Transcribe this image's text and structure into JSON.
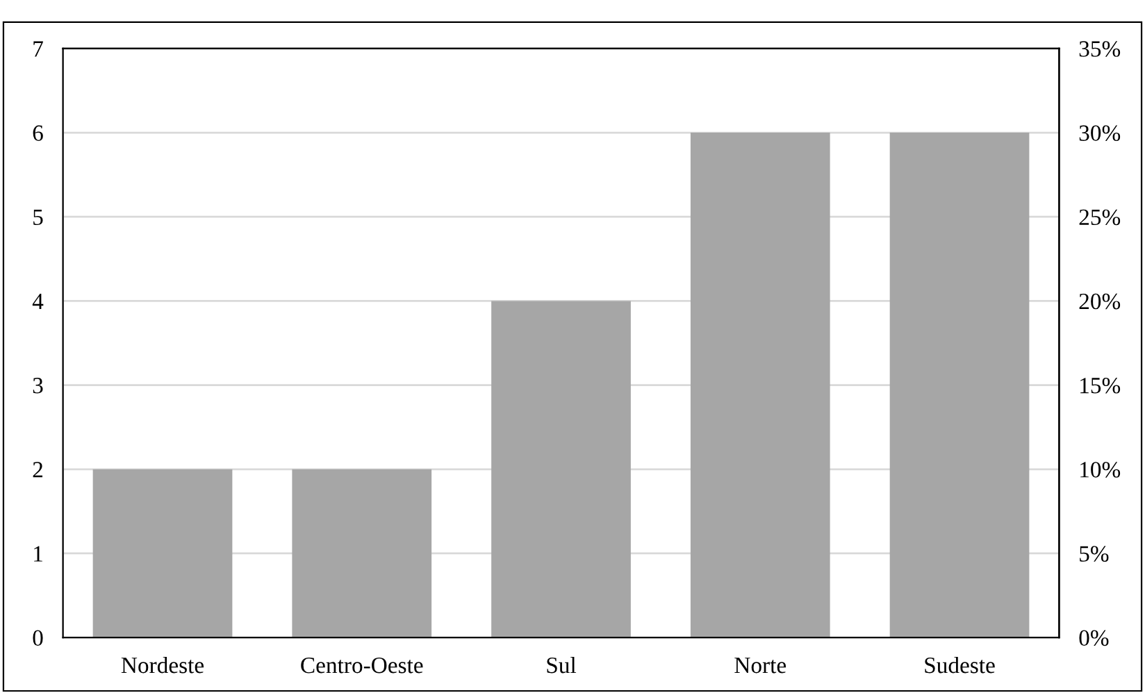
{
  "chart_data": {
    "type": "bar",
    "categories": [
      "Nordeste",
      "Centro-Oeste",
      "Sul",
      "Norte",
      "Sudeste"
    ],
    "values": [
      2,
      2,
      4,
      6,
      6
    ],
    "color": "#a6a6a6",
    "ylim": [
      0,
      7
    ],
    "yticks": [
      0,
      1,
      2,
      3,
      4,
      5,
      6,
      7
    ],
    "y2lim": [
      0,
      35
    ],
    "y2ticks": [
      {
        "value": 0,
        "label": "0%"
      },
      {
        "value": 5,
        "label": "5%"
      },
      {
        "value": 10,
        "label": "10%"
      },
      {
        "value": 15,
        "label": "15%"
      },
      {
        "value": 20,
        "label": "20%"
      },
      {
        "value": 25,
        "label": "25%"
      },
      {
        "value": 30,
        "label": "30%"
      },
      {
        "value": 35,
        "label": "35%"
      }
    ],
    "grid": "y"
  }
}
